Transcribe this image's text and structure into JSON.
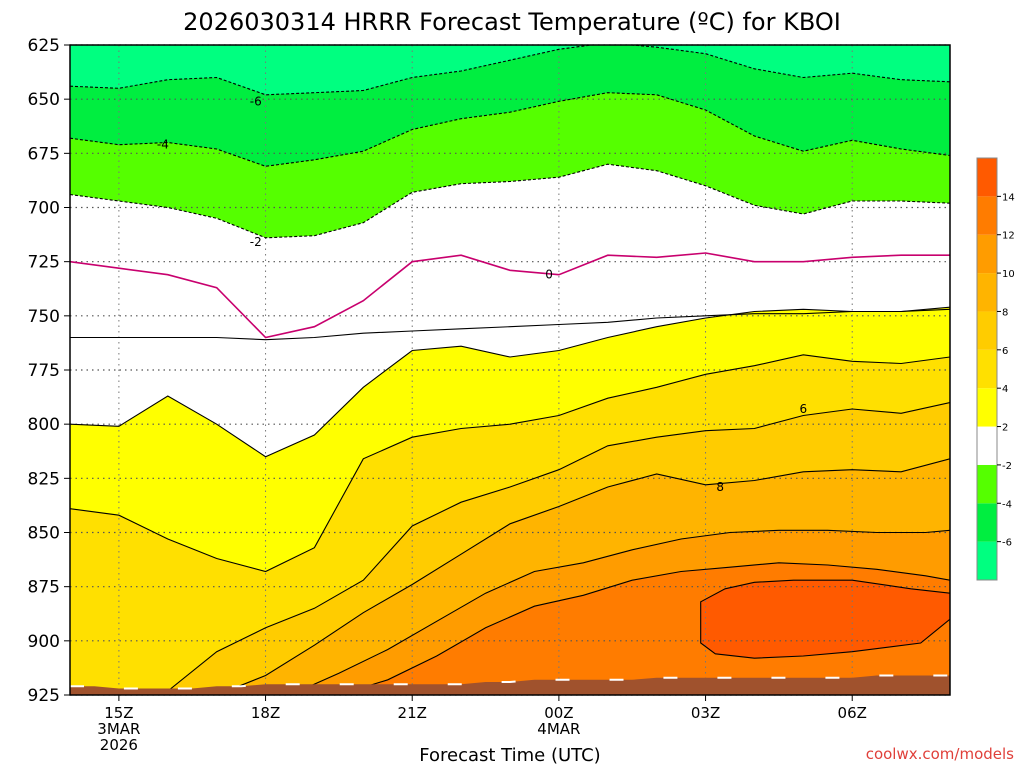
{
  "chart_data": {
    "type": "heatmap",
    "title": "2026030314 HRRR Forecast Temperature (ºC) for KBOI",
    "xlabel": "Forecast Time (UTC)",
    "ylabel": "",
    "credit": "coolwx.com/models",
    "y_ticks": [
      625,
      650,
      675,
      700,
      725,
      750,
      775,
      800,
      825,
      850,
      875,
      900,
      925
    ],
    "ylim": [
      925,
      625
    ],
    "x_ticks": [
      {
        "hour": 15,
        "lines": [
          "15Z",
          "3MAR",
          "2026"
        ]
      },
      {
        "hour": 18,
        "lines": [
          "18Z"
        ]
      },
      {
        "hour": 21,
        "lines": [
          "21Z"
        ]
      },
      {
        "hour": 24,
        "lines": [
          "00Z",
          "4MAR"
        ]
      },
      {
        "hour": 27,
        "lines": [
          "03Z"
        ]
      },
      {
        "hour": 30,
        "lines": [
          "06Z"
        ]
      }
    ],
    "xlim": [
      14,
      32
    ],
    "grid": true,
    "surface_pressure_hpa": [
      921,
      921,
      922,
      922,
      922,
      922,
      921,
      921,
      920,
      920,
      920,
      920,
      920,
      920,
      920,
      920,
      920,
      919,
      919,
      918,
      918,
      918,
      918,
      918,
      917,
      917,
      917,
      917,
      917,
      917,
      917,
      917,
      917,
      916,
      916,
      916,
      916
    ],
    "colorbar": {
      "ticks": [
        "14",
        "12",
        "10",
        "8",
        "6",
        "4",
        "2",
        "-2",
        "-4",
        "-6"
      ],
      "bands": [
        {
          "range": "<-6",
          "color": "#00ff80"
        },
        {
          "range": "-6 to -4",
          "color": "#00ee40"
        },
        {
          "range": "-4 to -2",
          "color": "#55ff00"
        },
        {
          "range": "-2 to 2",
          "color": "#ffffff"
        },
        {
          "range": "2 to 4",
          "color": "#ffff00"
        },
        {
          "range": "4 to 6",
          "color": "#ffe000"
        },
        {
          "range": "6 to 8",
          "color": "#ffcc00"
        },
        {
          "range": "8 to 10",
          "color": "#ffb400"
        },
        {
          "range": "10 to 12",
          "color": "#ff9c00"
        },
        {
          "range": "12 to 14",
          "color": "#ff7c00"
        },
        {
          "range": ">14",
          "color": "#ff5a00"
        }
      ]
    },
    "contours": [
      {
        "level": -6,
        "label": "-6",
        "label_at": [
          17.8,
          651
        ],
        "style": "dashed",
        "points": [
          [
            14,
            644
          ],
          [
            15,
            645
          ],
          [
            16,
            641
          ],
          [
            17,
            640
          ],
          [
            18,
            648
          ],
          [
            19,
            647
          ],
          [
            20,
            646
          ],
          [
            21,
            640
          ],
          [
            22,
            637
          ],
          [
            23,
            632
          ],
          [
            24,
            627
          ],
          [
            25,
            624
          ],
          [
            26,
            626
          ],
          [
            27,
            629
          ],
          [
            28,
            636
          ],
          [
            29,
            640
          ],
          [
            30,
            638
          ],
          [
            31,
            641
          ],
          [
            32,
            642
          ]
        ]
      },
      {
        "level": -4,
        "label": "-4",
        "label_at": [
          15.9,
          671
        ],
        "style": "dashed",
        "points": [
          [
            14,
            668
          ],
          [
            15,
            671
          ],
          [
            16,
            670
          ],
          [
            17,
            673
          ],
          [
            18,
            681
          ],
          [
            19,
            678
          ],
          [
            20,
            674
          ],
          [
            21,
            664
          ],
          [
            22,
            659
          ],
          [
            23,
            656
          ],
          [
            24,
            651
          ],
          [
            25,
            647
          ],
          [
            26,
            648
          ],
          [
            27,
            655
          ],
          [
            28,
            667
          ],
          [
            29,
            674
          ],
          [
            30,
            669
          ],
          [
            31,
            673
          ],
          [
            32,
            676
          ]
        ]
      },
      {
        "level": -2,
        "label": "-2",
        "label_at": [
          17.8,
          716
        ],
        "style": "dashed",
        "points": [
          [
            14,
            694
          ],
          [
            15,
            697
          ],
          [
            16,
            700
          ],
          [
            17,
            705
          ],
          [
            18,
            714
          ],
          [
            19,
            713
          ],
          [
            20,
            707
          ],
          [
            21,
            693
          ],
          [
            22,
            689
          ],
          [
            23,
            688
          ],
          [
            24,
            686
          ],
          [
            25,
            680
          ],
          [
            26,
            683
          ],
          [
            27,
            690
          ],
          [
            28,
            699
          ],
          [
            29,
            703
          ],
          [
            30,
            697
          ],
          [
            31,
            697
          ],
          [
            32,
            698
          ]
        ]
      },
      {
        "level": 0,
        "label": "0",
        "label_at": [
          23.8,
          731
        ],
        "style": "solid",
        "color": "#c8006e",
        "points": [
          [
            14,
            725
          ],
          [
            15,
            728
          ],
          [
            16,
            731
          ],
          [
            17,
            737
          ],
          [
            18,
            760
          ],
          [
            19,
            755
          ],
          [
            20,
            743
          ],
          [
            21,
            725
          ],
          [
            22,
            722
          ],
          [
            23,
            729
          ],
          [
            24,
            731
          ],
          [
            25,
            722
          ],
          [
            26,
            723
          ],
          [
            27,
            721
          ],
          [
            28,
            725
          ],
          [
            29,
            725
          ],
          [
            30,
            723
          ],
          [
            31,
            722
          ],
          [
            32,
            722
          ]
        ]
      },
      {
        "level": 2,
        "label": "",
        "style": "solid",
        "points": [
          [
            14,
            760
          ],
          [
            15,
            760
          ],
          [
            16,
            760
          ],
          [
            17,
            760
          ],
          [
            18,
            761
          ],
          [
            19,
            760
          ],
          [
            20,
            758
          ],
          [
            21,
            757
          ],
          [
            22,
            756
          ],
          [
            23,
            755
          ],
          [
            24,
            754
          ],
          [
            25,
            753
          ],
          [
            26,
            751
          ],
          [
            27,
            750
          ],
          [
            28,
            749
          ],
          [
            29,
            749
          ],
          [
            30,
            748
          ],
          [
            31,
            748
          ],
          [
            32,
            747
          ]
        ]
      },
      {
        "level": 3,
        "label": "",
        "style": "solid",
        "points": [
          [
            14,
            800
          ],
          [
            15,
            801
          ],
          [
            16,
            787
          ],
          [
            17,
            800
          ],
          [
            18,
            815
          ],
          [
            19,
            805
          ],
          [
            20,
            783
          ],
          [
            21,
            766
          ],
          [
            22,
            764
          ],
          [
            23,
            769
          ],
          [
            24,
            766
          ],
          [
            25,
            760
          ],
          [
            26,
            755
          ],
          [
            27,
            751
          ],
          [
            28,
            748
          ],
          [
            29,
            747
          ],
          [
            30,
            748
          ],
          [
            31,
            748
          ],
          [
            32,
            746
          ]
        ]
      },
      {
        "level": 4,
        "label": "",
        "style": "solid",
        "points": [
          [
            14,
            839
          ],
          [
            15,
            842
          ],
          [
            16,
            853
          ],
          [
            17,
            862
          ],
          [
            18,
            868
          ],
          [
            19,
            857
          ],
          [
            20,
            816
          ],
          [
            21,
            806
          ],
          [
            22,
            802
          ],
          [
            23,
            800
          ],
          [
            24,
            796
          ],
          [
            25,
            788
          ],
          [
            26,
            783
          ],
          [
            27,
            777
          ],
          [
            28,
            773
          ],
          [
            29,
            768
          ],
          [
            30,
            771
          ],
          [
            31,
            772
          ],
          [
            32,
            769
          ]
        ]
      },
      {
        "level": 6,
        "label": "6",
        "label_at": [
          29.0,
          793
        ],
        "style": "solid",
        "points": [
          [
            15.9,
            925
          ],
          [
            17,
            905
          ],
          [
            18,
            894
          ],
          [
            19,
            885
          ],
          [
            20,
            872
          ],
          [
            21,
            847
          ],
          [
            22,
            836
          ],
          [
            23,
            829
          ],
          [
            24,
            821
          ],
          [
            25,
            810
          ],
          [
            26,
            806
          ],
          [
            27,
            803
          ],
          [
            28,
            802
          ],
          [
            29,
            796
          ],
          [
            30,
            793
          ],
          [
            31,
            795
          ],
          [
            32,
            790
          ]
        ]
      },
      {
        "level": 8,
        "label": "8",
        "label_at": [
          27.3,
          829
        ],
        "style": "solid",
        "points": [
          [
            17,
            925
          ],
          [
            18,
            916
          ],
          [
            19,
            902
          ],
          [
            20,
            887
          ],
          [
            21,
            874
          ],
          [
            22,
            860
          ],
          [
            23,
            846
          ],
          [
            24,
            838
          ],
          [
            25,
            829
          ],
          [
            26,
            823
          ],
          [
            27,
            828
          ],
          [
            28,
            826
          ],
          [
            29,
            822
          ],
          [
            30,
            821
          ],
          [
            31,
            822
          ],
          [
            32,
            816
          ]
        ]
      },
      {
        "level": 10,
        "label": "",
        "style": "solid",
        "points": [
          [
            18.5,
            925
          ],
          [
            19.5,
            915
          ],
          [
            20.5,
            904
          ],
          [
            21.5,
            891
          ],
          [
            22.5,
            878
          ],
          [
            23.5,
            868
          ],
          [
            24.5,
            864
          ],
          [
            25.5,
            858
          ],
          [
            26.5,
            853
          ],
          [
            27.5,
            850
          ],
          [
            28.5,
            849
          ],
          [
            29.5,
            849
          ],
          [
            30.5,
            850
          ],
          [
            31.5,
            850
          ],
          [
            32,
            849
          ]
        ]
      },
      {
        "level": 12,
        "label": "",
        "style": "solid",
        "points": [
          [
            19.5,
            925
          ],
          [
            20.5,
            918
          ],
          [
            21.5,
            907
          ],
          [
            22.5,
            894
          ],
          [
            23.5,
            884
          ],
          [
            24.5,
            879
          ],
          [
            25.5,
            872
          ],
          [
            26.5,
            868
          ],
          [
            27.5,
            866
          ],
          [
            28.5,
            864
          ],
          [
            29.5,
            865
          ],
          [
            30.5,
            867
          ],
          [
            31.5,
            870
          ],
          [
            32,
            872
          ]
        ]
      },
      {
        "level": 14,
        "label": "",
        "style": "solid",
        "closed": true,
        "points": [
          [
            26.9,
            882
          ],
          [
            27.4,
            876
          ],
          [
            28.0,
            873
          ],
          [
            28.8,
            872
          ],
          [
            30.0,
            872
          ],
          [
            31.2,
            876
          ],
          [
            32.0,
            878
          ],
          [
            32.2,
            882
          ],
          [
            32.0,
            890
          ],
          [
            31.4,
            901
          ],
          [
            30.0,
            905
          ],
          [
            29.0,
            907
          ],
          [
            28.0,
            908
          ],
          [
            27.2,
            906
          ],
          [
            26.9,
            901
          ],
          [
            26.9,
            890
          ]
        ]
      }
    ]
  }
}
